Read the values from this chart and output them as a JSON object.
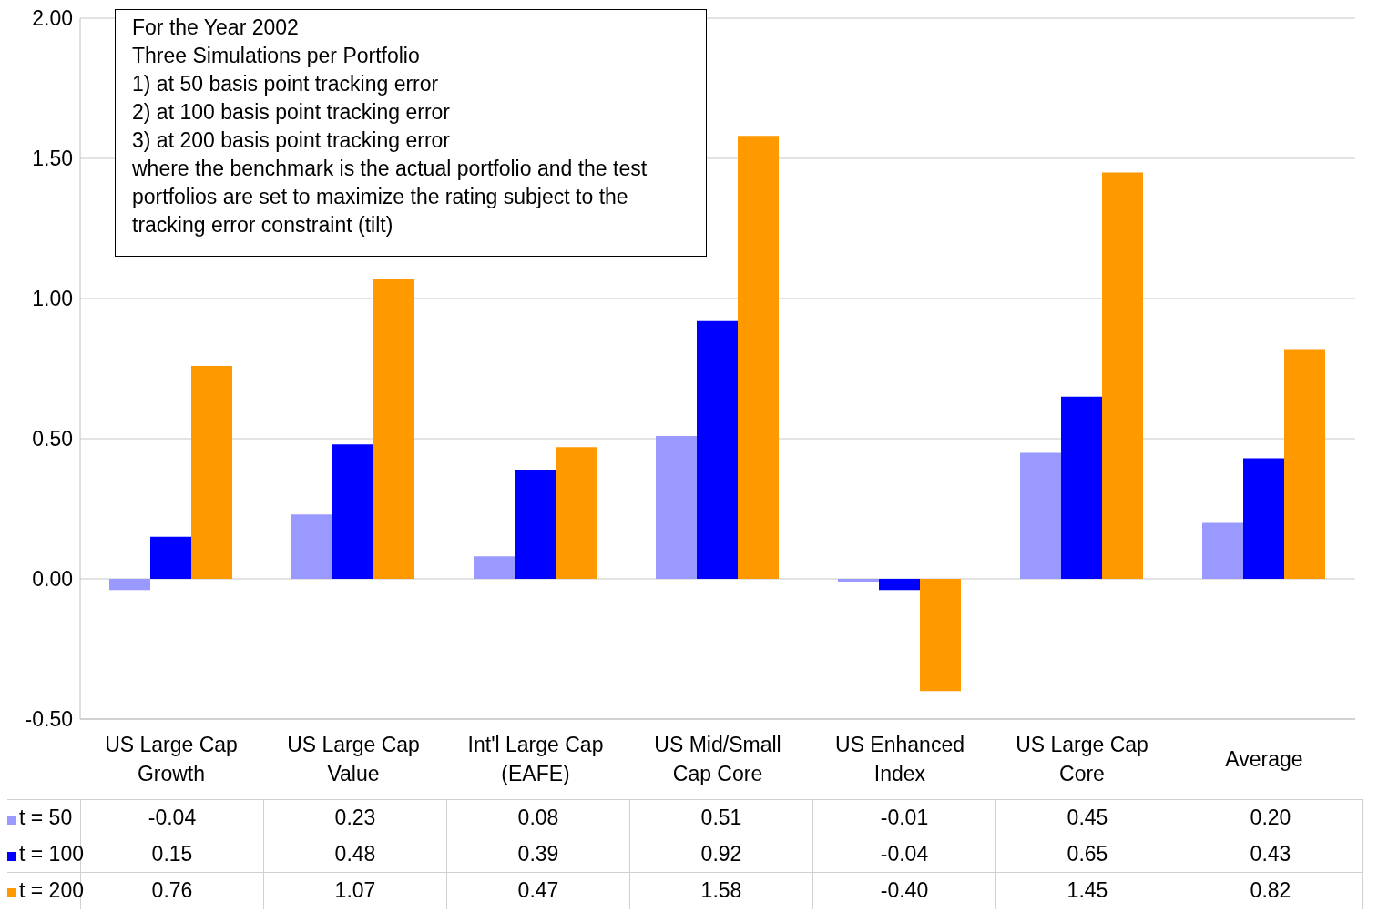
{
  "chart_data": {
    "type": "bar",
    "categories": [
      "US Large Cap Growth",
      "US Large Cap Value",
      "Int'l Large Cap (EAFE)",
      "US Mid/Small Cap Core",
      "US Enhanced Index",
      "US Large Cap Core",
      "Average"
    ],
    "series": [
      {
        "name": "t = 50",
        "color": "#9999ff",
        "values": [
          -0.04,
          0.23,
          0.08,
          0.51,
          -0.01,
          0.45,
          0.2
        ],
        "value_labels": [
          "-0.04",
          "0.23",
          "0.08",
          "0.51",
          "-0.01",
          "0.45",
          "0.20"
        ]
      },
      {
        "name": "t = 100",
        "color": "#0000ff",
        "values": [
          0.15,
          0.48,
          0.39,
          0.92,
          -0.04,
          0.65,
          0.43
        ],
        "value_labels": [
          "0.15",
          "0.48",
          "0.39",
          "0.92",
          "-0.04",
          "0.65",
          "0.43"
        ]
      },
      {
        "name": "t = 200",
        "color": "#ff9900",
        "values": [
          0.76,
          1.07,
          0.47,
          1.58,
          -0.4,
          1.45,
          0.82
        ],
        "value_labels": [
          "0.76",
          "1.07",
          "0.47",
          "1.58",
          "-0.40",
          "1.45",
          "0.82"
        ]
      }
    ],
    "ylim": [
      -0.5,
      2
    ],
    "yticks": [
      {
        "value": -0.5,
        "label": "-0.50"
      },
      {
        "value": 0,
        "label": "0.00"
      },
      {
        "value": 0.5,
        "label": "0.50"
      },
      {
        "value": 1,
        "label": "1.00"
      },
      {
        "value": 1.5,
        "label": "1.50"
      },
      {
        "value": 2,
        "label": "2.00"
      }
    ],
    "grid": "y",
    "legend": "bottom left",
    "annotations": [
      "For the Year 2002",
      "Three Simulations per Portfolio",
      "1) at 50 basis point tracking error",
      "2) at 100 basis point tracking error",
      "3) at 200 basis point tracking error",
      "where the benchmark is the actual portfolio and the test portfolios are set to maximize the rating subject to the tracking error constraint (tilt)"
    ]
  }
}
